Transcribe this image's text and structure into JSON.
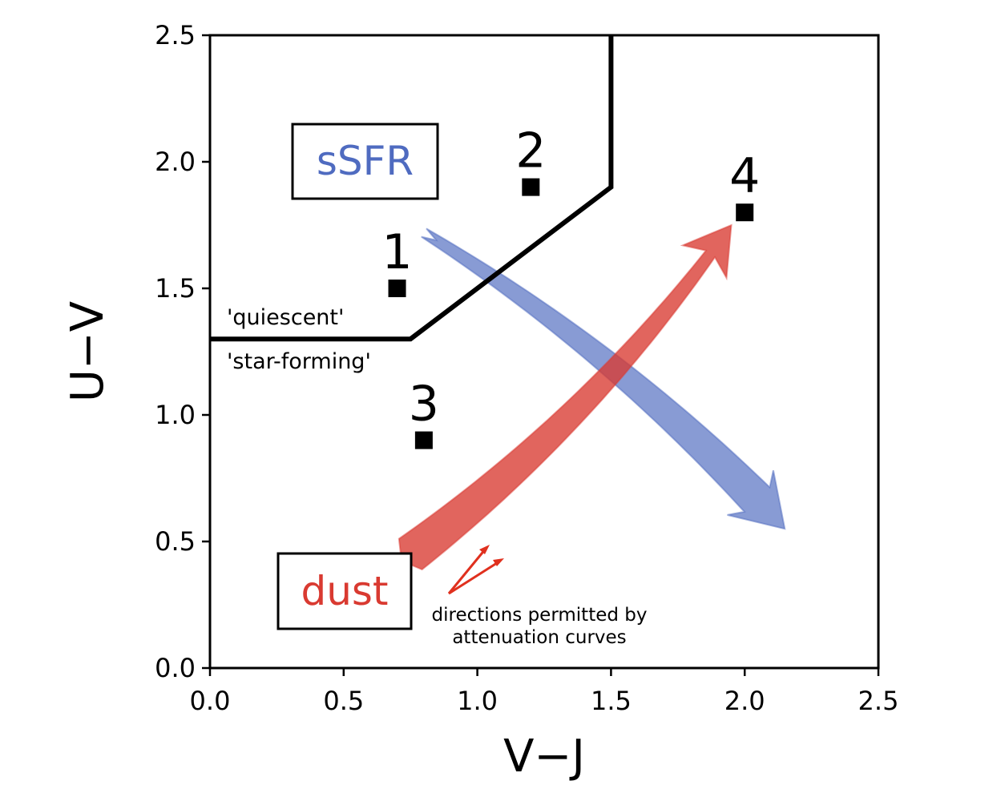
{
  "chart_data": {
    "type": "scatter",
    "xlabel": "V−J",
    "ylabel": "U−V",
    "xlim": [
      0,
      2.5
    ],
    "ylim": [
      0,
      2.5
    ],
    "xticks": [
      "0.0",
      "0.5",
      "1.0",
      "1.5",
      "2.0",
      "2.5"
    ],
    "yticks": [
      "0.0",
      "0.5",
      "1.0",
      "1.5",
      "2.0",
      "2.5"
    ],
    "grid": false,
    "points": [
      {
        "label": "1",
        "x": 0.7,
        "y": 1.5
      },
      {
        "label": "2",
        "x": 1.2,
        "y": 1.9
      },
      {
        "label": "3",
        "x": 0.8,
        "y": 0.9
      },
      {
        "label": "4",
        "x": 2.0,
        "y": 1.8
      }
    ],
    "boundary": {
      "x": [
        0.0,
        0.75,
        1.5,
        1.5
      ],
      "y": [
        1.3,
        1.3,
        1.9,
        2.5
      ]
    },
    "region_labels": {
      "upper": "'quiescent'",
      "lower": "'star-forming'"
    },
    "arrows": {
      "ssfr": {
        "label": "sSFR",
        "color": "#4f6bc0",
        "from": [
          0.8,
          1.72
        ],
        "to": [
          2.15,
          0.55
        ]
      },
      "dust": {
        "label": "dust",
        "color": "#d93a31",
        "from": [
          0.75,
          0.45
        ],
        "to": [
          1.95,
          1.75
        ]
      }
    },
    "note": {
      "lines": [
        "directions permitted by",
        "attenuation curves"
      ],
      "color": "#e0301e"
    }
  }
}
